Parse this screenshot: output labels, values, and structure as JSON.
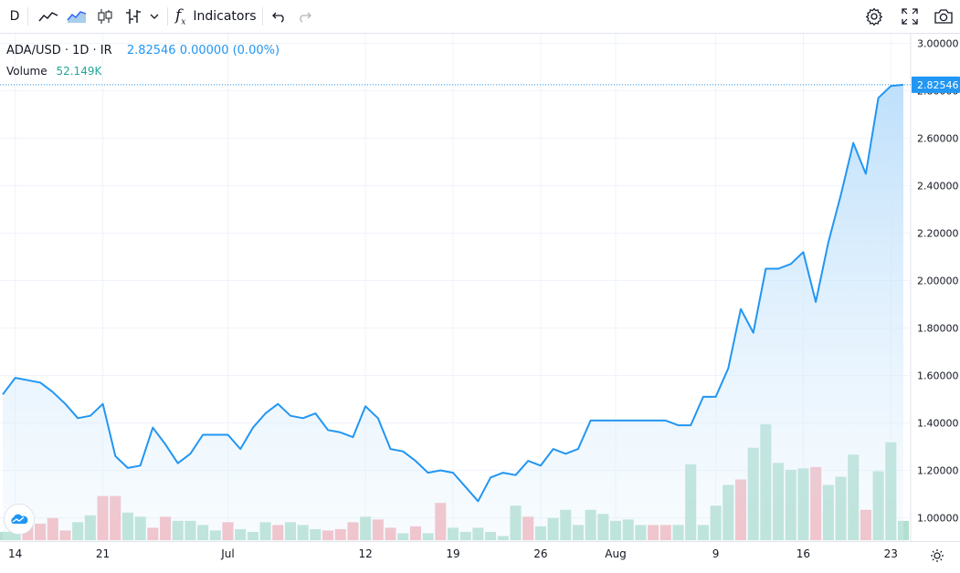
{
  "toolbar": {
    "interval": "D",
    "indicators_label": "Indicators",
    "icons": [
      "line-chart-icon",
      "area-chart-icon",
      "candles-icon",
      "bars-icon",
      "chevron-down-icon",
      "fx-icon",
      "undo-icon",
      "redo-icon",
      "settings-icon",
      "fullscreen-icon",
      "camera-icon"
    ]
  },
  "legend": {
    "symbol": "ADA/USD · 1D · IR",
    "values": "2.82546 0.00000 (0.00%)"
  },
  "volume": {
    "label": "Volume",
    "value": "52.149K"
  },
  "price_label": "2.82546",
  "colors": {
    "line": "#2196f3",
    "area_top": "#bbdefb",
    "up_volume": "#b2dfcf",
    "down_volume": "#f4b6bd",
    "grid": "#f0f3fa",
    "axis_text": "#131722"
  },
  "chart_data": {
    "type": "area",
    "title": "ADA/USD · 1D · IR",
    "ylim": [
      0.9,
      3.0
    ],
    "y_ticks": [
      "3.00000",
      "2.80000",
      "2.60000",
      "2.40000",
      "2.20000",
      "2.00000",
      "1.80000",
      "1.60000",
      "1.40000",
      "1.20000",
      "1.00000"
    ],
    "x_ticks": [
      {
        "label": "14",
        "index": 1
      },
      {
        "label": "21",
        "index": 8
      },
      {
        "label": "Jul",
        "index": 18
      },
      {
        "label": "12",
        "index": 29
      },
      {
        "label": "19",
        "index": 36
      },
      {
        "label": "26",
        "index": 43
      },
      {
        "label": "Aug",
        "index": 49
      },
      {
        "label": "9",
        "index": 57
      },
      {
        "label": "16",
        "index": 64
      },
      {
        "label": "23",
        "index": 71
      }
    ],
    "series": [
      {
        "values": [
          1.52,
          1.59,
          1.58,
          1.57,
          1.53,
          1.48,
          1.42,
          1.43,
          1.48,
          1.26,
          1.21,
          1.22,
          1.38,
          1.31,
          1.23,
          1.27,
          1.35,
          1.35,
          1.35,
          1.29,
          1.38,
          1.44,
          1.48,
          1.43,
          1.42,
          1.44,
          1.37,
          1.36,
          1.34,
          1.47,
          1.42,
          1.29,
          1.28,
          1.24,
          1.19,
          1.2,
          1.19,
          1.13,
          1.07,
          1.17,
          1.19,
          1.18,
          1.24,
          1.22,
          1.29,
          1.27,
          1.29,
          1.41,
          1.41,
          1.41,
          1.41,
          1.41,
          1.41,
          1.41,
          1.39,
          1.39,
          1.51,
          1.51,
          1.63,
          1.88,
          1.78,
          2.05,
          2.05,
          2.07,
          2.12,
          1.91,
          2.16,
          2.36,
          2.58,
          2.45,
          2.77,
          2.82,
          2.82546
        ]
      }
    ],
    "volume": {
      "values": [
        0.06,
        0.12,
        0.11,
        0.12,
        0.16,
        0.07,
        0.13,
        0.18,
        0.32,
        0.32,
        0.2,
        0.17,
        0.09,
        0.17,
        0.14,
        0.14,
        0.11,
        0.07,
        0.13,
        0.08,
        0.06,
        0.13,
        0.11,
        0.13,
        0.11,
        0.08,
        0.07,
        0.08,
        0.13,
        0.17,
        0.15,
        0.09,
        0.05,
        0.1,
        0.05,
        0.27,
        0.09,
        0.06,
        0.09,
        0.06,
        0.03,
        0.25,
        0.17,
        0.1,
        0.16,
        0.22,
        0.11,
        0.22,
        0.19,
        0.14,
        0.15,
        0.11,
        0.11,
        0.11,
        0.11,
        0.55,
        0.11,
        0.25,
        0.4,
        0.44,
        0.67,
        0.84,
        0.56,
        0.51,
        0.52,
        0.53,
        0.4,
        0.46,
        0.62,
        0.22,
        0.5,
        0.71,
        0.14
      ],
      "direction": [
        "u",
        "u",
        "d",
        "d",
        "d",
        "d",
        "u",
        "u",
        "d",
        "d",
        "u",
        "u",
        "d",
        "d",
        "u",
        "u",
        "u",
        "u",
        "d",
        "u",
        "u",
        "u",
        "d",
        "u",
        "u",
        "u",
        "d",
        "d",
        "d",
        "u",
        "d",
        "d",
        "u",
        "d",
        "u",
        "d",
        "u",
        "u",
        "u",
        "u",
        "u",
        "u",
        "d",
        "u",
        "u",
        "u",
        "u",
        "u",
        "u",
        "u",
        "u",
        "u",
        "d",
        "d",
        "u",
        "u",
        "u",
        "u",
        "u",
        "d",
        "u",
        "u",
        "u",
        "u",
        "u",
        "d",
        "u",
        "u",
        "u",
        "d",
        "u",
        "u",
        "u"
      ]
    }
  }
}
